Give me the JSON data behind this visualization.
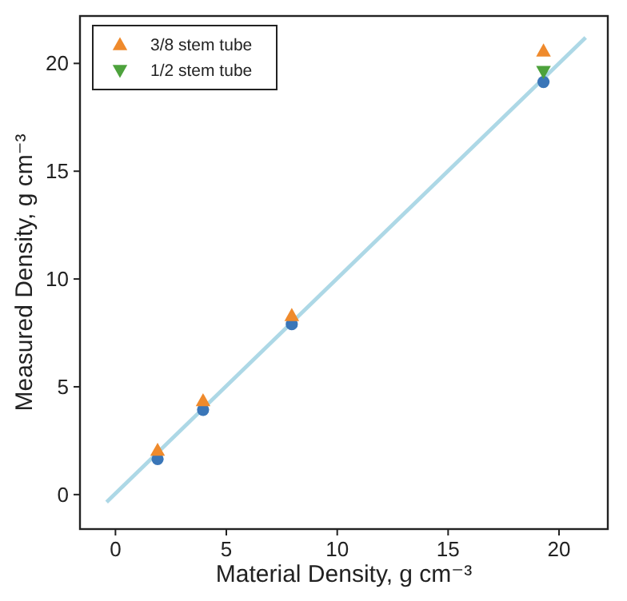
{
  "chart_data": {
    "type": "scatter",
    "xlabel": "Material Density, g cm⁻³",
    "ylabel": "Measured Density, g cm⁻³",
    "xlim": [
      -1.6,
      22.2
    ],
    "ylim": [
      -1.6,
      22.2
    ],
    "xticks": [
      0,
      5,
      10,
      15,
      20
    ],
    "yticks": [
      0,
      5,
      10,
      15,
      20
    ],
    "x": [
      1.9,
      3.95,
      7.95,
      19.3
    ],
    "legend": "top left",
    "grid": false,
    "series": [
      {
        "type": "line",
        "x": [
          -0.4,
          21.2
        ],
        "values": [
          -0.35,
          21.2
        ],
        "color": "#add8e6",
        "marker": "none"
      },
      {
        "color": "#3a76b8",
        "values": [
          1.65,
          3.93,
          7.9,
          19.14
        ],
        "marker": "circle"
      },
      {
        "name": "3/8 stem tube",
        "color": "#ef8a2c",
        "values": [
          2.05,
          4.35,
          8.3,
          20.57
        ],
        "marker": "triangle"
      },
      {
        "name": "1/2 stem tube",
        "color": "#4da23c",
        "values": [
          null,
          null,
          null,
          19.63
        ],
        "marker": "triangle-down"
      }
    ]
  }
}
